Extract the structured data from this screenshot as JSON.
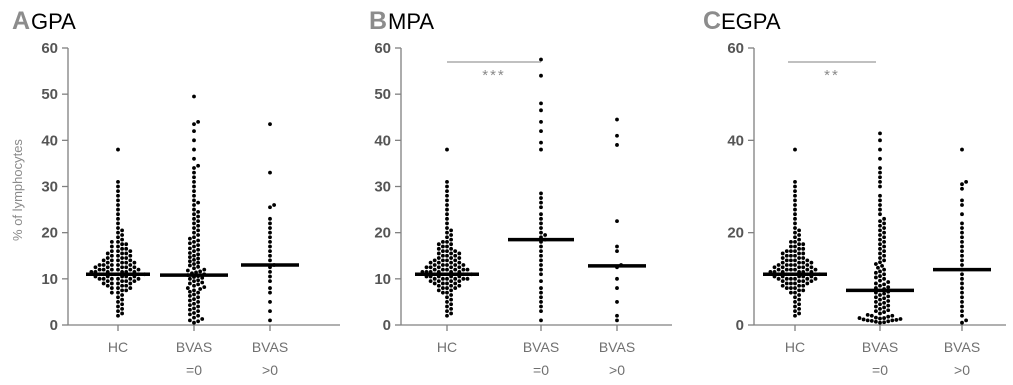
{
  "chart_data": [
    {
      "type": "scatter",
      "letter": "A",
      "title": "GPA",
      "ylabel": "% of lymphocytes",
      "ylim": [
        0,
        60
      ],
      "yticks": [
        "0",
        "10",
        "20",
        "30",
        "40",
        "50",
        "60"
      ],
      "categories": [
        {
          "line1": "HC",
          "line2": ""
        },
        {
          "line1": "BVAS",
          "line2": "=0"
        },
        {
          "line1": "BVAS",
          "line2": ">0"
        }
      ],
      "series": [
        {
          "median": 11.0,
          "values": [
            2,
            2.5,
            3,
            3.5,
            4,
            4.5,
            5,
            5.5,
            6,
            6.5,
            7,
            7,
            7.5,
            7.5,
            8,
            8,
            8,
            8.5,
            8.5,
            8.5,
            9,
            9,
            9,
            9,
            9.5,
            9.5,
            9.5,
            9.5,
            10,
            10,
            10,
            10,
            10,
            10,
            10.5,
            10.5,
            10.5,
            10.5,
            10.5,
            11,
            11,
            11,
            11,
            11,
            11,
            11,
            11.5,
            11.5,
            11.5,
            11.5,
            11.5,
            11.5,
            12,
            12,
            12,
            12,
            12,
            12,
            12.5,
            12.5,
            12.5,
            12.5,
            12.5,
            13,
            13,
            13,
            13,
            13,
            13.5,
            13.5,
            13.5,
            13.5,
            14,
            14,
            14,
            14,
            14.5,
            14.5,
            14.5,
            15,
            15,
            15,
            15.5,
            15.5,
            15.5,
            16,
            16,
            16,
            16.5,
            16.5,
            17,
            17,
            17.5,
            17.5,
            18,
            18,
            18.5,
            19,
            19.5,
            20,
            20.5,
            21,
            22,
            23,
            24,
            25,
            26,
            27,
            28,
            29,
            30,
            31,
            38
          ]
        },
        {
          "median": 10.8,
          "values": [
            0.5,
            0.8,
            1,
            1.3,
            1.6,
            2,
            2.3,
            2.6,
            3,
            3.3,
            3.6,
            4,
            4.3,
            4.6,
            5,
            5.3,
            5.6,
            6,
            6.3,
            6.6,
            7,
            7.2,
            7.5,
            7.8,
            8,
            8.2,
            8.5,
            8.8,
            9,
            9.2,
            9.5,
            9.7,
            10,
            10.2,
            10.4,
            10.6,
            10.8,
            11,
            11.2,
            11.4,
            11.6,
            11.8,
            12,
            12.3,
            12.6,
            12.9,
            13.2,
            13.5,
            13.8,
            14.1,
            14.4,
            14.7,
            15,
            15.3,
            15.6,
            16,
            16.3,
            16.6,
            17,
            17.3,
            17.7,
            18,
            18.3,
            18.7,
            19,
            19.5,
            20,
            20.5,
            21,
            21.5,
            22,
            22.5,
            23,
            23.5,
            24,
            24.5,
            25,
            26,
            26.5,
            27,
            28,
            29,
            30,
            31,
            32,
            33,
            34,
            34.5,
            36,
            38,
            40,
            42,
            43.5,
            44,
            49.5
          ]
        },
        {
          "median": 13.0,
          "values": [
            1,
            3,
            5,
            7,
            8,
            9.5,
            10.5,
            11.5,
            12.5,
            13,
            14,
            15,
            16,
            17,
            18,
            19,
            20,
            21,
            22,
            23,
            25.5,
            26,
            33,
            43.5
          ]
        }
      ],
      "stars": ""
    },
    {
      "type": "scatter",
      "letter": "B",
      "title": "MPA",
      "ylabel": "",
      "ylim": [
        0,
        60
      ],
      "yticks": [
        "0",
        "10",
        "20",
        "30",
        "40",
        "50",
        "60"
      ],
      "categories": [
        {
          "line1": "HC",
          "line2": ""
        },
        {
          "line1": "BVAS",
          "line2": "=0"
        },
        {
          "line1": "BVAS",
          "line2": ">0"
        }
      ],
      "series": [
        {
          "median": 11.0,
          "values": [
            2,
            2.5,
            3,
            3.5,
            4,
            4.5,
            5,
            5.5,
            6,
            6.5,
            7,
            7,
            7.5,
            7.5,
            8,
            8,
            8,
            8.5,
            8.5,
            8.5,
            9,
            9,
            9,
            9,
            9.5,
            9.5,
            9.5,
            9.5,
            10,
            10,
            10,
            10,
            10,
            10,
            10.5,
            10.5,
            10.5,
            10.5,
            10.5,
            11,
            11,
            11,
            11,
            11,
            11,
            11,
            11.5,
            11.5,
            11.5,
            11.5,
            11.5,
            11.5,
            12,
            12,
            12,
            12,
            12,
            12,
            12.5,
            12.5,
            12.5,
            12.5,
            12.5,
            13,
            13,
            13,
            13,
            13,
            13.5,
            13.5,
            13.5,
            13.5,
            14,
            14,
            14,
            14,
            14.5,
            14.5,
            14.5,
            15,
            15,
            15,
            15.5,
            15.5,
            15.5,
            16,
            16,
            16,
            16.5,
            16.5,
            17,
            17,
            17.5,
            17.5,
            18,
            18,
            18.5,
            19,
            19.5,
            20,
            20.5,
            21,
            22,
            23,
            24,
            25,
            26,
            27,
            28,
            29,
            30,
            31,
            38
          ]
        },
        {
          "median": 18.5,
          "values": [
            1,
            3,
            4,
            5,
            6,
            7,
            8,
            9.5,
            11,
            12,
            13,
            14,
            15,
            16,
            17,
            18,
            18.5,
            19,
            19.5,
            20,
            21,
            22,
            23,
            24,
            25.5,
            26.5,
            27.5,
            28.5,
            38,
            39.5,
            42,
            44,
            46.5,
            48,
            54,
            57.5
          ]
        },
        {
          "median": 12.8,
          "values": [
            1,
            2,
            5,
            8,
            10,
            12.5,
            13,
            16,
            17,
            22.5,
            39,
            41,
            44.5
          ]
        }
      ],
      "stars": "***"
    },
    {
      "type": "scatter",
      "letter": "C",
      "title": "EGPA",
      "ylabel": "",
      "ylim": [
        0,
        60
      ],
      "yticks": [
        "0",
        "20",
        "40",
        "60"
      ],
      "categories": [
        {
          "line1": "HC",
          "line2": ""
        },
        {
          "line1": "BVAS",
          "line2": "=0"
        },
        {
          "line1": "BVAS",
          "line2": ">0"
        }
      ],
      "series": [
        {
          "median": 11.0,
          "values": [
            2,
            2.5,
            3,
            3.5,
            4,
            4.5,
            5,
            5.5,
            6,
            6.5,
            7,
            7,
            7.5,
            7.5,
            8,
            8,
            8,
            8.5,
            8.5,
            8.5,
            9,
            9,
            9,
            9,
            9.5,
            9.5,
            9.5,
            9.5,
            10,
            10,
            10,
            10,
            10,
            10,
            10.5,
            10.5,
            10.5,
            10.5,
            10.5,
            11,
            11,
            11,
            11,
            11,
            11,
            11,
            11.5,
            11.5,
            11.5,
            11.5,
            11.5,
            11.5,
            12,
            12,
            12,
            12,
            12,
            12,
            12.5,
            12.5,
            12.5,
            12.5,
            12.5,
            13,
            13,
            13,
            13,
            13,
            13.5,
            13.5,
            13.5,
            13.5,
            14,
            14,
            14,
            14,
            14.5,
            14.5,
            14.5,
            15,
            15,
            15,
            15.5,
            15.5,
            15.5,
            16,
            16,
            16,
            16.5,
            16.5,
            17,
            17,
            17.5,
            17.5,
            18,
            18,
            18.5,
            19,
            19.5,
            20,
            20.5,
            21,
            22,
            23,
            24,
            25,
            26,
            27,
            28,
            29,
            30,
            31,
            38
          ]
        },
        {
          "median": 7.5,
          "values": [
            0.5,
            0.6,
            0.7,
            0.8,
            0.9,
            1,
            1,
            1.1,
            1.2,
            1.3,
            1.4,
            1.5,
            1.5,
            1.6,
            1.8,
            2,
            2,
            2.2,
            2.5,
            2.8,
            3,
            3.2,
            3.5,
            3.8,
            4,
            4.2,
            4.5,
            4.8,
            5,
            5.2,
            5.5,
            5.8,
            6,
            6.2,
            6.5,
            6.8,
            7,
            7.2,
            7.5,
            7.8,
            8,
            8.2,
            8.5,
            8.8,
            9,
            9.3,
            9.6,
            10,
            10.3,
            10.6,
            11,
            11.3,
            11.6,
            12,
            12.4,
            12.8,
            13.2,
            13.6,
            14,
            14.5,
            15,
            15.5,
            16,
            16.5,
            17,
            17.5,
            18,
            18.5,
            19,
            19.5,
            20,
            20.5,
            21,
            21.5,
            22,
            22.5,
            23,
            24,
            25,
            26,
            27,
            28,
            30,
            31,
            32,
            33,
            34,
            36,
            38,
            40,
            41.5
          ]
        },
        {
          "median": 12.0,
          "values": [
            0.5,
            1,
            2,
            3,
            4,
            5,
            6,
            7,
            8,
            9,
            10,
            11,
            12,
            13,
            14,
            15,
            16,
            17,
            18,
            19,
            20,
            21,
            22,
            24,
            26,
            27,
            29.5,
            30.5,
            31,
            38
          ]
        }
      ],
      "stars": "**"
    }
  ]
}
